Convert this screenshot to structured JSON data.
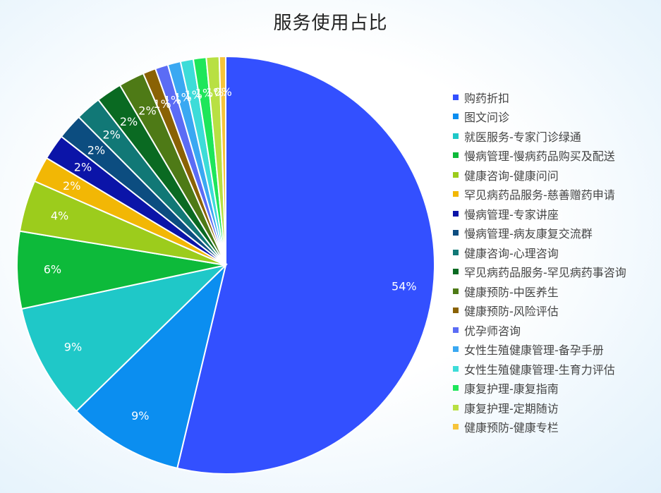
{
  "chart_data": {
    "type": "pie",
    "title": "服务使用占比",
    "legend_position": "right",
    "slices": [
      {
        "name": "购药折扣",
        "value": 54,
        "label": "54%",
        "color": "#3350ff"
      },
      {
        "name": "图文问诊",
        "value": 9,
        "label": "9%",
        "color": "#0b8ef0"
      },
      {
        "name": "就医服务-专家门诊绿通",
        "value": 9,
        "label": "9%",
        "color": "#1fc8c8"
      },
      {
        "name": "慢病管理-慢病药品购买及配送",
        "value": 6,
        "label": "6%",
        "color": "#0dba3a"
      },
      {
        "name": "健康咨询-健康问问",
        "value": 4,
        "label": "4%",
        "color": "#9ccc1c"
      },
      {
        "name": "罕见病药品服务-慈善赠药申请",
        "value": 2,
        "label": "2%",
        "color": "#f2b705"
      },
      {
        "name": "慢病管理-专家讲座",
        "value": 2,
        "label": "2%",
        "color": "#0b14a8"
      },
      {
        "name": "慢病管理-病友康复交流群",
        "value": 2,
        "label": "2%",
        "color": "#0c4d80"
      },
      {
        "name": "健康咨询-心理咨询",
        "value": 2,
        "label": "2%",
        "color": "#117876"
      },
      {
        "name": "罕见病药品服务-罕见病药事咨询",
        "value": 2,
        "label": "2%",
        "color": "#0a6a22"
      },
      {
        "name": "健康预防-中医养生",
        "value": 2,
        "label": "2%",
        "color": "#4e7a16"
      },
      {
        "name": "健康预防-风险评估",
        "value": 1,
        "label": "1%",
        "color": "#8a6204"
      },
      {
        "name": "优孕师咨询",
        "value": 1,
        "label": "1%",
        "color": "#5b6cf5"
      },
      {
        "name": "女性生殖健康管理-备孕手册",
        "value": 1,
        "label": "1%",
        "color": "#3aa8f2"
      },
      {
        "name": "女性生殖健康管理-生育力评估",
        "value": 1,
        "label": "1%",
        "color": "#3ddcd8"
      },
      {
        "name": "康复护理-康复指南",
        "value": 1,
        "label": "1%",
        "color": "#1ee65a"
      },
      {
        "name": "康复护理-定期随访",
        "value": 1,
        "label": "1%",
        "color": "#b8e043"
      },
      {
        "name": "健康预防-健康专栏",
        "value": 0.5,
        "label": "0%",
        "color": "#f6c43a"
      }
    ]
  }
}
